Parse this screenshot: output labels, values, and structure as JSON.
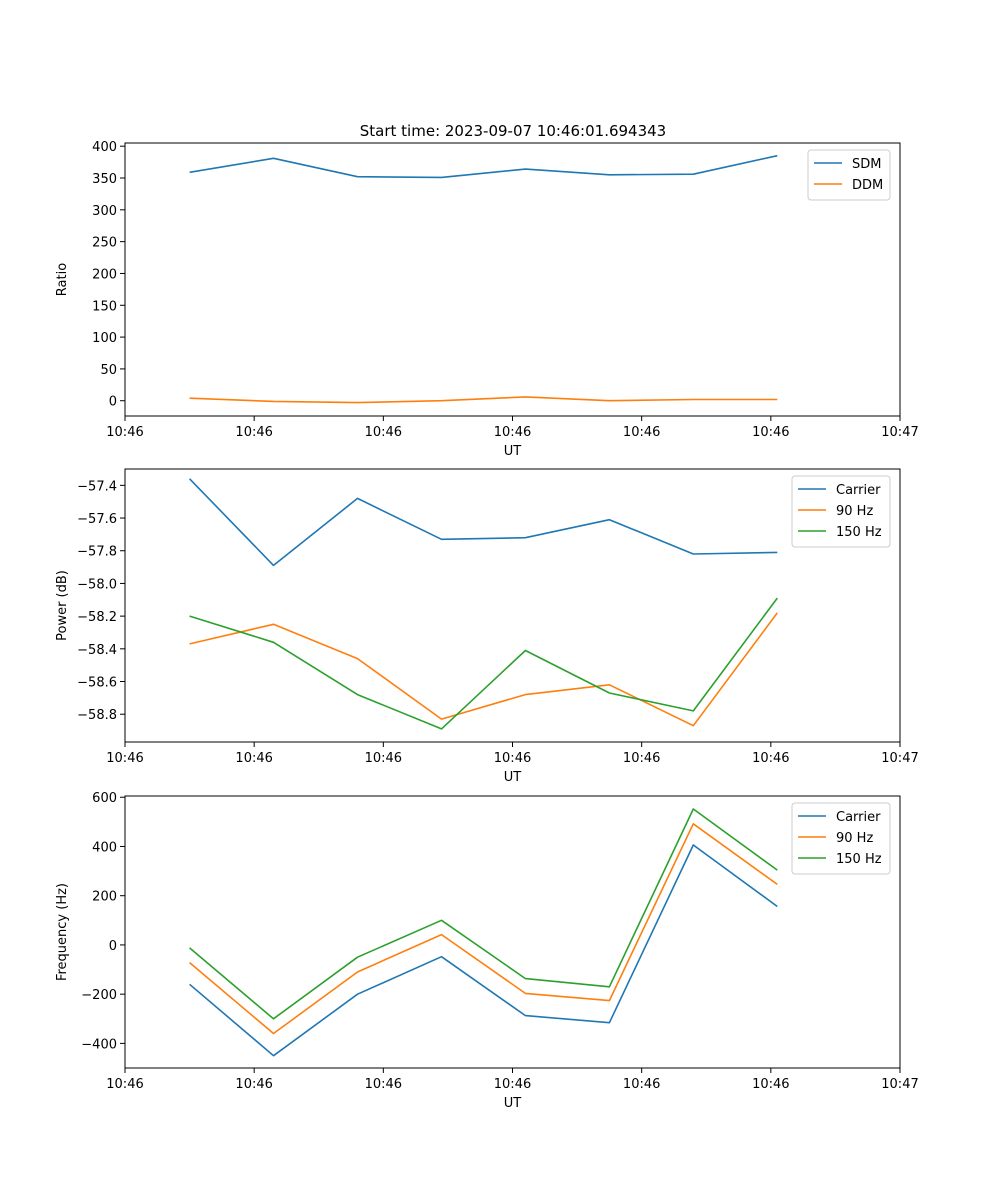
{
  "figure_title": "Start time: 2023-09-07 10:46:01.694343",
  "colors": {
    "blue": "#1f77b4",
    "orange": "#ff7f0e",
    "green": "#2ca02c"
  },
  "chart_data": [
    {
      "type": "line",
      "title": "Start time: 2023-09-07 10:46:01.694343",
      "xlabel": "UT",
      "ylabel": "Ratio",
      "x": [
        0.5,
        1.15,
        1.8,
        2.45,
        3.1,
        3.75,
        4.4,
        5.05
      ],
      "xlim": [
        0,
        6
      ],
      "x_ticks": [
        0,
        1,
        2,
        3,
        4,
        5,
        6
      ],
      "x_tick_labels": [
        "10:46",
        "10:46",
        "10:46",
        "10:46",
        "10:46",
        "10:46",
        "10:47"
      ],
      "ylim": [
        -24,
        405
      ],
      "y_ticks": [
        0,
        50,
        100,
        150,
        200,
        250,
        300,
        350,
        400
      ],
      "y_tick_labels": [
        "0",
        "50",
        "100",
        "150",
        "200",
        "250",
        "300",
        "350",
        "400"
      ],
      "legend_position": "top-right",
      "series": [
        {
          "name": "SDM",
          "color": "#1f77b4",
          "values": [
            359,
            381,
            352,
            351,
            364,
            355,
            356,
            385
          ]
        },
        {
          "name": "DDM",
          "color": "#ff7f0e",
          "values": [
            4,
            -1,
            -3,
            0,
            6,
            0,
            2,
            2
          ]
        }
      ]
    },
    {
      "type": "line",
      "title": "",
      "xlabel": "UT",
      "ylabel": "Power (dB)",
      "x": [
        0.5,
        1.15,
        1.8,
        2.45,
        3.1,
        3.75,
        4.4,
        5.05
      ],
      "xlim": [
        0,
        6
      ],
      "x_ticks": [
        0,
        1,
        2,
        3,
        4,
        5,
        6
      ],
      "x_tick_labels": [
        "10:46",
        "10:46",
        "10:46",
        "10:46",
        "10:46",
        "10:46",
        "10:47"
      ],
      "ylim": [
        -58.97,
        -57.3
      ],
      "y_ticks": [
        -57.4,
        -57.6,
        -57.8,
        -58.0,
        -58.2,
        -58.4,
        -58.6,
        -58.8
      ],
      "y_tick_labels": [
        "−57.4",
        "−57.6",
        "−57.8",
        "−58.0",
        "−58.2",
        "−58.4",
        "−58.6",
        "−58.8"
      ],
      "legend_position": "top-right",
      "series": [
        {
          "name": "Carrier",
          "color": "#1f77b4",
          "values": [
            -57.36,
            -57.89,
            -57.48,
            -57.73,
            -57.72,
            -57.61,
            -57.82,
            -57.81
          ]
        },
        {
          "name": "90 Hz",
          "color": "#ff7f0e",
          "values": [
            -58.37,
            -58.25,
            -58.46,
            -58.83,
            -58.68,
            -58.62,
            -58.87,
            -58.18
          ]
        },
        {
          "name": "150 Hz",
          "color": "#2ca02c",
          "values": [
            -58.2,
            -58.36,
            -58.68,
            -58.89,
            -58.41,
            -58.67,
            -58.78,
            -58.09
          ]
        }
      ]
    },
    {
      "type": "line",
      "title": "",
      "xlabel": "UT",
      "ylabel": "Frequency (Hz)",
      "x": [
        0.5,
        1.15,
        1.8,
        2.45,
        3.1,
        3.75,
        4.4,
        5.05
      ],
      "xlim": [
        0,
        6
      ],
      "x_ticks": [
        0,
        1,
        2,
        3,
        4,
        5,
        6
      ],
      "x_tick_labels": [
        "10:46",
        "10:46",
        "10:46",
        "10:46",
        "10:46",
        "10:46",
        "10:47"
      ],
      "ylim": [
        -500,
        605
      ],
      "y_ticks": [
        600,
        400,
        200,
        0,
        -200,
        -400
      ],
      "y_tick_labels": [
        "600",
        "400",
        "200",
        "0",
        "−200",
        "−400"
      ],
      "legend_position": "top-right",
      "series": [
        {
          "name": "Carrier",
          "color": "#1f77b4",
          "values": [
            -160,
            -450,
            -200,
            -48,
            -287,
            -316,
            406,
            156
          ]
        },
        {
          "name": "90 Hz",
          "color": "#ff7f0e",
          "values": [
            -72,
            -360,
            -110,
            42,
            -197,
            -226,
            492,
            246
          ]
        },
        {
          "name": "150 Hz",
          "color": "#2ca02c",
          "values": [
            -12,
            -300,
            -50,
            100,
            -137,
            -170,
            552,
            304
          ]
        }
      ]
    }
  ]
}
